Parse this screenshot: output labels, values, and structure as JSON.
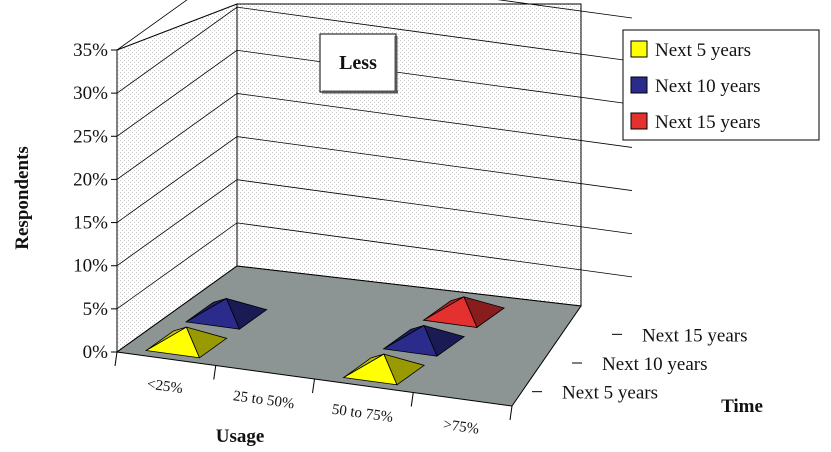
{
  "chart_data": {
    "type": "bar",
    "subtype": "3d-pyramid",
    "annotation": "Less",
    "xlabel": "Usage",
    "ylabel": "Respondents",
    "zlabel": "Time",
    "categories": [
      "<25%",
      "25 to 50%",
      "50 to 75%",
      ">75%"
    ],
    "y_ticks": [
      "0%",
      "5%",
      "10%",
      "15%",
      "20%",
      "25%",
      "30%",
      "35%"
    ],
    "ylim": [
      0,
      35
    ],
    "y_unit": "%",
    "grid": true,
    "legend_position": "top-right",
    "series": [
      {
        "name": "Next 5 years",
        "color": "#ffff00",
        "values": [
          2,
          0,
          2,
          0
        ]
      },
      {
        "name": "Next 10 years",
        "color": "#2b2b8c",
        "values": [
          2,
          0,
          2,
          0
        ]
      },
      {
        "name": "Next 15 years",
        "color": "#e53030",
        "values": [
          0,
          0,
          2,
          0
        ]
      }
    ]
  }
}
